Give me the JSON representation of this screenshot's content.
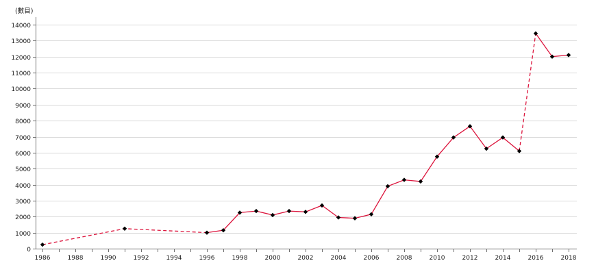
{
  "chart_data": {
    "type": "line",
    "title": "",
    "unit_label": "(數目)",
    "xlabel": "",
    "ylabel": "(數目)",
    "x_range": [
      1986,
      2018
    ],
    "ylim": [
      0,
      14000
    ],
    "ytick_step": 1000,
    "grid": true,
    "legend": "none",
    "line_color": "#dc143c",
    "grid_color": "#d9d9d9",
    "axis_color": "#707070",
    "label_color": "#1a1a1a",
    "marker": {
      "shape": "diamond",
      "color": "#000000"
    },
    "y_tick_labels": [
      "0",
      "1000",
      "2000",
      "3000",
      "4000",
      "5000",
      "6000",
      "7000",
      "8000",
      "9000",
      "10000",
      "11000",
      "12000",
      "13000",
      "14000"
    ],
    "x_tick_labels": [
      "1986",
      "1988",
      "1990",
      "1992",
      "1994",
      "1996",
      "1998",
      "2000",
      "2002",
      "2004",
      "2006",
      "2008",
      "2010",
      "2012",
      "2014",
      "2016",
      "2018"
    ],
    "segments": [
      {
        "name": "estimate-1986-1996-dashed",
        "style": "dashed",
        "points": [
          {
            "year": 1986,
            "value": 250
          },
          {
            "year": 1991,
            "value": 1250
          },
          {
            "year": 1996,
            "value": 1000
          }
        ]
      },
      {
        "name": "actual-1996-2015-solid",
        "style": "solid",
        "points": [
          {
            "year": 1996,
            "value": 1000
          },
          {
            "year": 1997,
            "value": 1150
          },
          {
            "year": 1998,
            "value": 2250
          },
          {
            "year": 1999,
            "value": 2350
          },
          {
            "year": 2000,
            "value": 2100
          },
          {
            "year": 2001,
            "value": 2350
          },
          {
            "year": 2002,
            "value": 2300
          },
          {
            "year": 2003,
            "value": 2700
          },
          {
            "year": 2004,
            "value": 1950
          },
          {
            "year": 2005,
            "value": 1900
          },
          {
            "year": 2006,
            "value": 2150
          },
          {
            "year": 2007,
            "value": 3900
          },
          {
            "year": 2008,
            "value": 4300
          },
          {
            "year": 2009,
            "value": 4200
          },
          {
            "year": 2010,
            "value": 5750
          },
          {
            "year": 2011,
            "value": 6950
          },
          {
            "year": 2012,
            "value": 7650
          },
          {
            "year": 2013,
            "value": 6250
          },
          {
            "year": 2014,
            "value": 6950
          },
          {
            "year": 2015,
            "value": 6100
          }
        ]
      },
      {
        "name": "break-2015-2016-dashed",
        "style": "dashed",
        "points": [
          {
            "year": 2015,
            "value": 6100
          },
          {
            "year": 2016,
            "value": 13450
          }
        ]
      },
      {
        "name": "actual-2016-2018-solid",
        "style": "solid",
        "points": [
          {
            "year": 2016,
            "value": 13450
          },
          {
            "year": 2017,
            "value": 12000
          },
          {
            "year": 2018,
            "value": 12100
          }
        ]
      }
    ]
  }
}
